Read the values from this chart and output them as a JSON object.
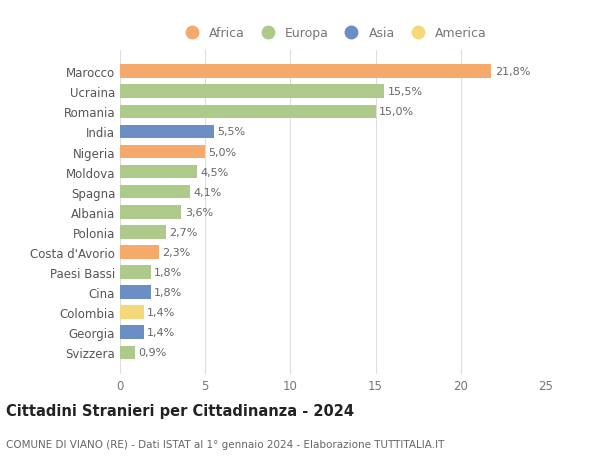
{
  "countries": [
    "Marocco",
    "Ucraina",
    "Romania",
    "India",
    "Nigeria",
    "Moldova",
    "Spagna",
    "Albania",
    "Polonia",
    "Costa d'Avorio",
    "Paesi Bassi",
    "Cina",
    "Colombia",
    "Georgia",
    "Svizzera"
  ],
  "values": [
    21.8,
    15.5,
    15.0,
    5.5,
    5.0,
    4.5,
    4.1,
    3.6,
    2.7,
    2.3,
    1.8,
    1.8,
    1.4,
    1.4,
    0.9
  ],
  "labels": [
    "21,8%",
    "15,5%",
    "15,0%",
    "5,5%",
    "5,0%",
    "4,5%",
    "4,1%",
    "3,6%",
    "2,7%",
    "2,3%",
    "1,8%",
    "1,8%",
    "1,4%",
    "1,4%",
    "0,9%"
  ],
  "continents": [
    "Africa",
    "Europa",
    "Europa",
    "Asia",
    "Africa",
    "Europa",
    "Europa",
    "Europa",
    "Europa",
    "Africa",
    "Europa",
    "Asia",
    "America",
    "Asia",
    "Europa"
  ],
  "colors": {
    "Africa": "#F5A96A",
    "Europa": "#AECA8A",
    "Asia": "#6B8FC4",
    "America": "#F5D87A"
  },
  "legend_order": [
    "Africa",
    "Europa",
    "Asia",
    "America"
  ],
  "title": "Cittadini Stranieri per Cittadinanza - 2024",
  "subtitle": "COMUNE DI VIANO (RE) - Dati ISTAT al 1° gennaio 2024 - Elaborazione TUTTITALIA.IT",
  "xlim": [
    0,
    25
  ],
  "xticks": [
    0,
    5,
    10,
    15,
    20,
    25
  ],
  "background_color": "#ffffff",
  "grid_color": "#dddddd",
  "bar_height": 0.68,
  "label_fontsize": 8.0,
  "tick_fontsize": 8.5,
  "title_fontsize": 10.5,
  "subtitle_fontsize": 7.5
}
